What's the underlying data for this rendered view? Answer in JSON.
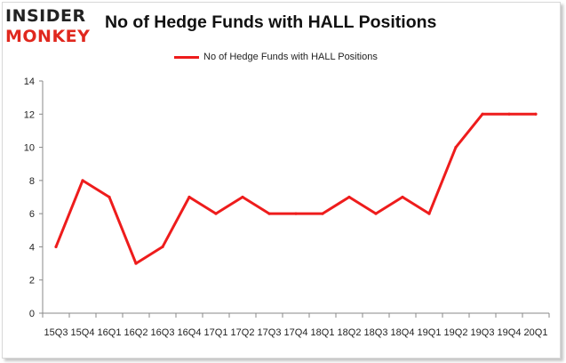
{
  "logo": {
    "top": "INSIDER",
    "bottom": "MONKEY"
  },
  "chart_data": {
    "type": "line",
    "title": "No of Hedge Funds with HALL Positions",
    "xlabel": "",
    "ylabel": "",
    "legend_position": "top-center",
    "grid": false,
    "ylim": [
      0,
      14
    ],
    "yticks": [
      0,
      2,
      4,
      6,
      8,
      10,
      12,
      14
    ],
    "categories": [
      "15Q3",
      "15Q4",
      "16Q1",
      "16Q2",
      "16Q3",
      "16Q4",
      "17Q1",
      "17Q2",
      "17Q3",
      "17Q4",
      "18Q1",
      "18Q2",
      "18Q3",
      "18Q4",
      "19Q1",
      "19Q2",
      "19Q3",
      "19Q4",
      "20Q1"
    ],
    "series": [
      {
        "name": "No of Hedge Funds with HALL Positions",
        "color": "#ee1c1c",
        "values": [
          4,
          8,
          7,
          3,
          4,
          7,
          6,
          7,
          6,
          6,
          6,
          7,
          6,
          7,
          6,
          10,
          12,
          12,
          12
        ]
      }
    ]
  }
}
